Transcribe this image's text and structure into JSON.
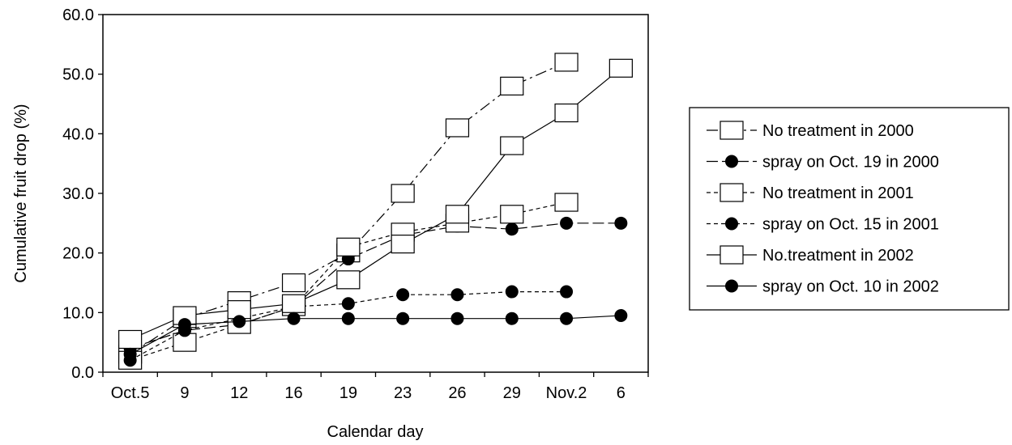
{
  "chart_data": {
    "type": "line",
    "title": "",
    "xlabel": "Calendar day",
    "ylabel": "Cumulative fruit drop (%)",
    "categories": [
      "Oct.5",
      "9",
      "12",
      "16",
      "19",
      "23",
      "26",
      "29",
      "Nov.2",
      "6"
    ],
    "ylim": [
      0,
      60
    ],
    "yticks": [
      "0.0",
      "10.0",
      "20.0",
      "30.0",
      "40.0",
      "50.0",
      "60.0"
    ],
    "grid": false,
    "legend_position": "right",
    "series": [
      {
        "name": "No treatment in 2000",
        "marker": "square",
        "dash": "dashdot",
        "values": [
          3.0,
          9.0,
          12.0,
          15.0,
          20.0,
          30.0,
          41.0,
          48.0,
          52.0,
          null
        ]
      },
      {
        "name": "spray on Oct. 19 in 2000",
        "marker": "circle",
        "dash": "longdash",
        "values": [
          4.0,
          7.0,
          8.0,
          11.0,
          19.0,
          23.0,
          24.5,
          24.0,
          25.0,
          25.0
        ]
      },
      {
        "name": "No treatment in 2001",
        "marker": "square",
        "dash": "shortdash",
        "values": [
          2.0,
          5.0,
          8.0,
          11.0,
          21.0,
          23.5,
          25.0,
          26.5,
          28.5,
          null
        ]
      },
      {
        "name": "spray on Oct. 15 in 2001",
        "marker": "circle",
        "dash": "shortdash",
        "values": [
          2.0,
          7.0,
          9.0,
          11.0,
          11.5,
          13.0,
          13.0,
          13.5,
          13.5,
          null
        ]
      },
      {
        "name": "No.treatment in 2002",
        "marker": "square",
        "dash": "solid",
        "values": [
          5.5,
          9.5,
          10.5,
          11.5,
          15.5,
          21.5,
          26.5,
          38.0,
          43.5,
          51.0
        ]
      },
      {
        "name": "spray on Oct. 10 in 2002",
        "marker": "circle",
        "dash": "solid",
        "values": [
          3.0,
          8.0,
          8.5,
          9.0,
          9.0,
          9.0,
          9.0,
          9.0,
          9.0,
          9.5
        ]
      }
    ]
  }
}
